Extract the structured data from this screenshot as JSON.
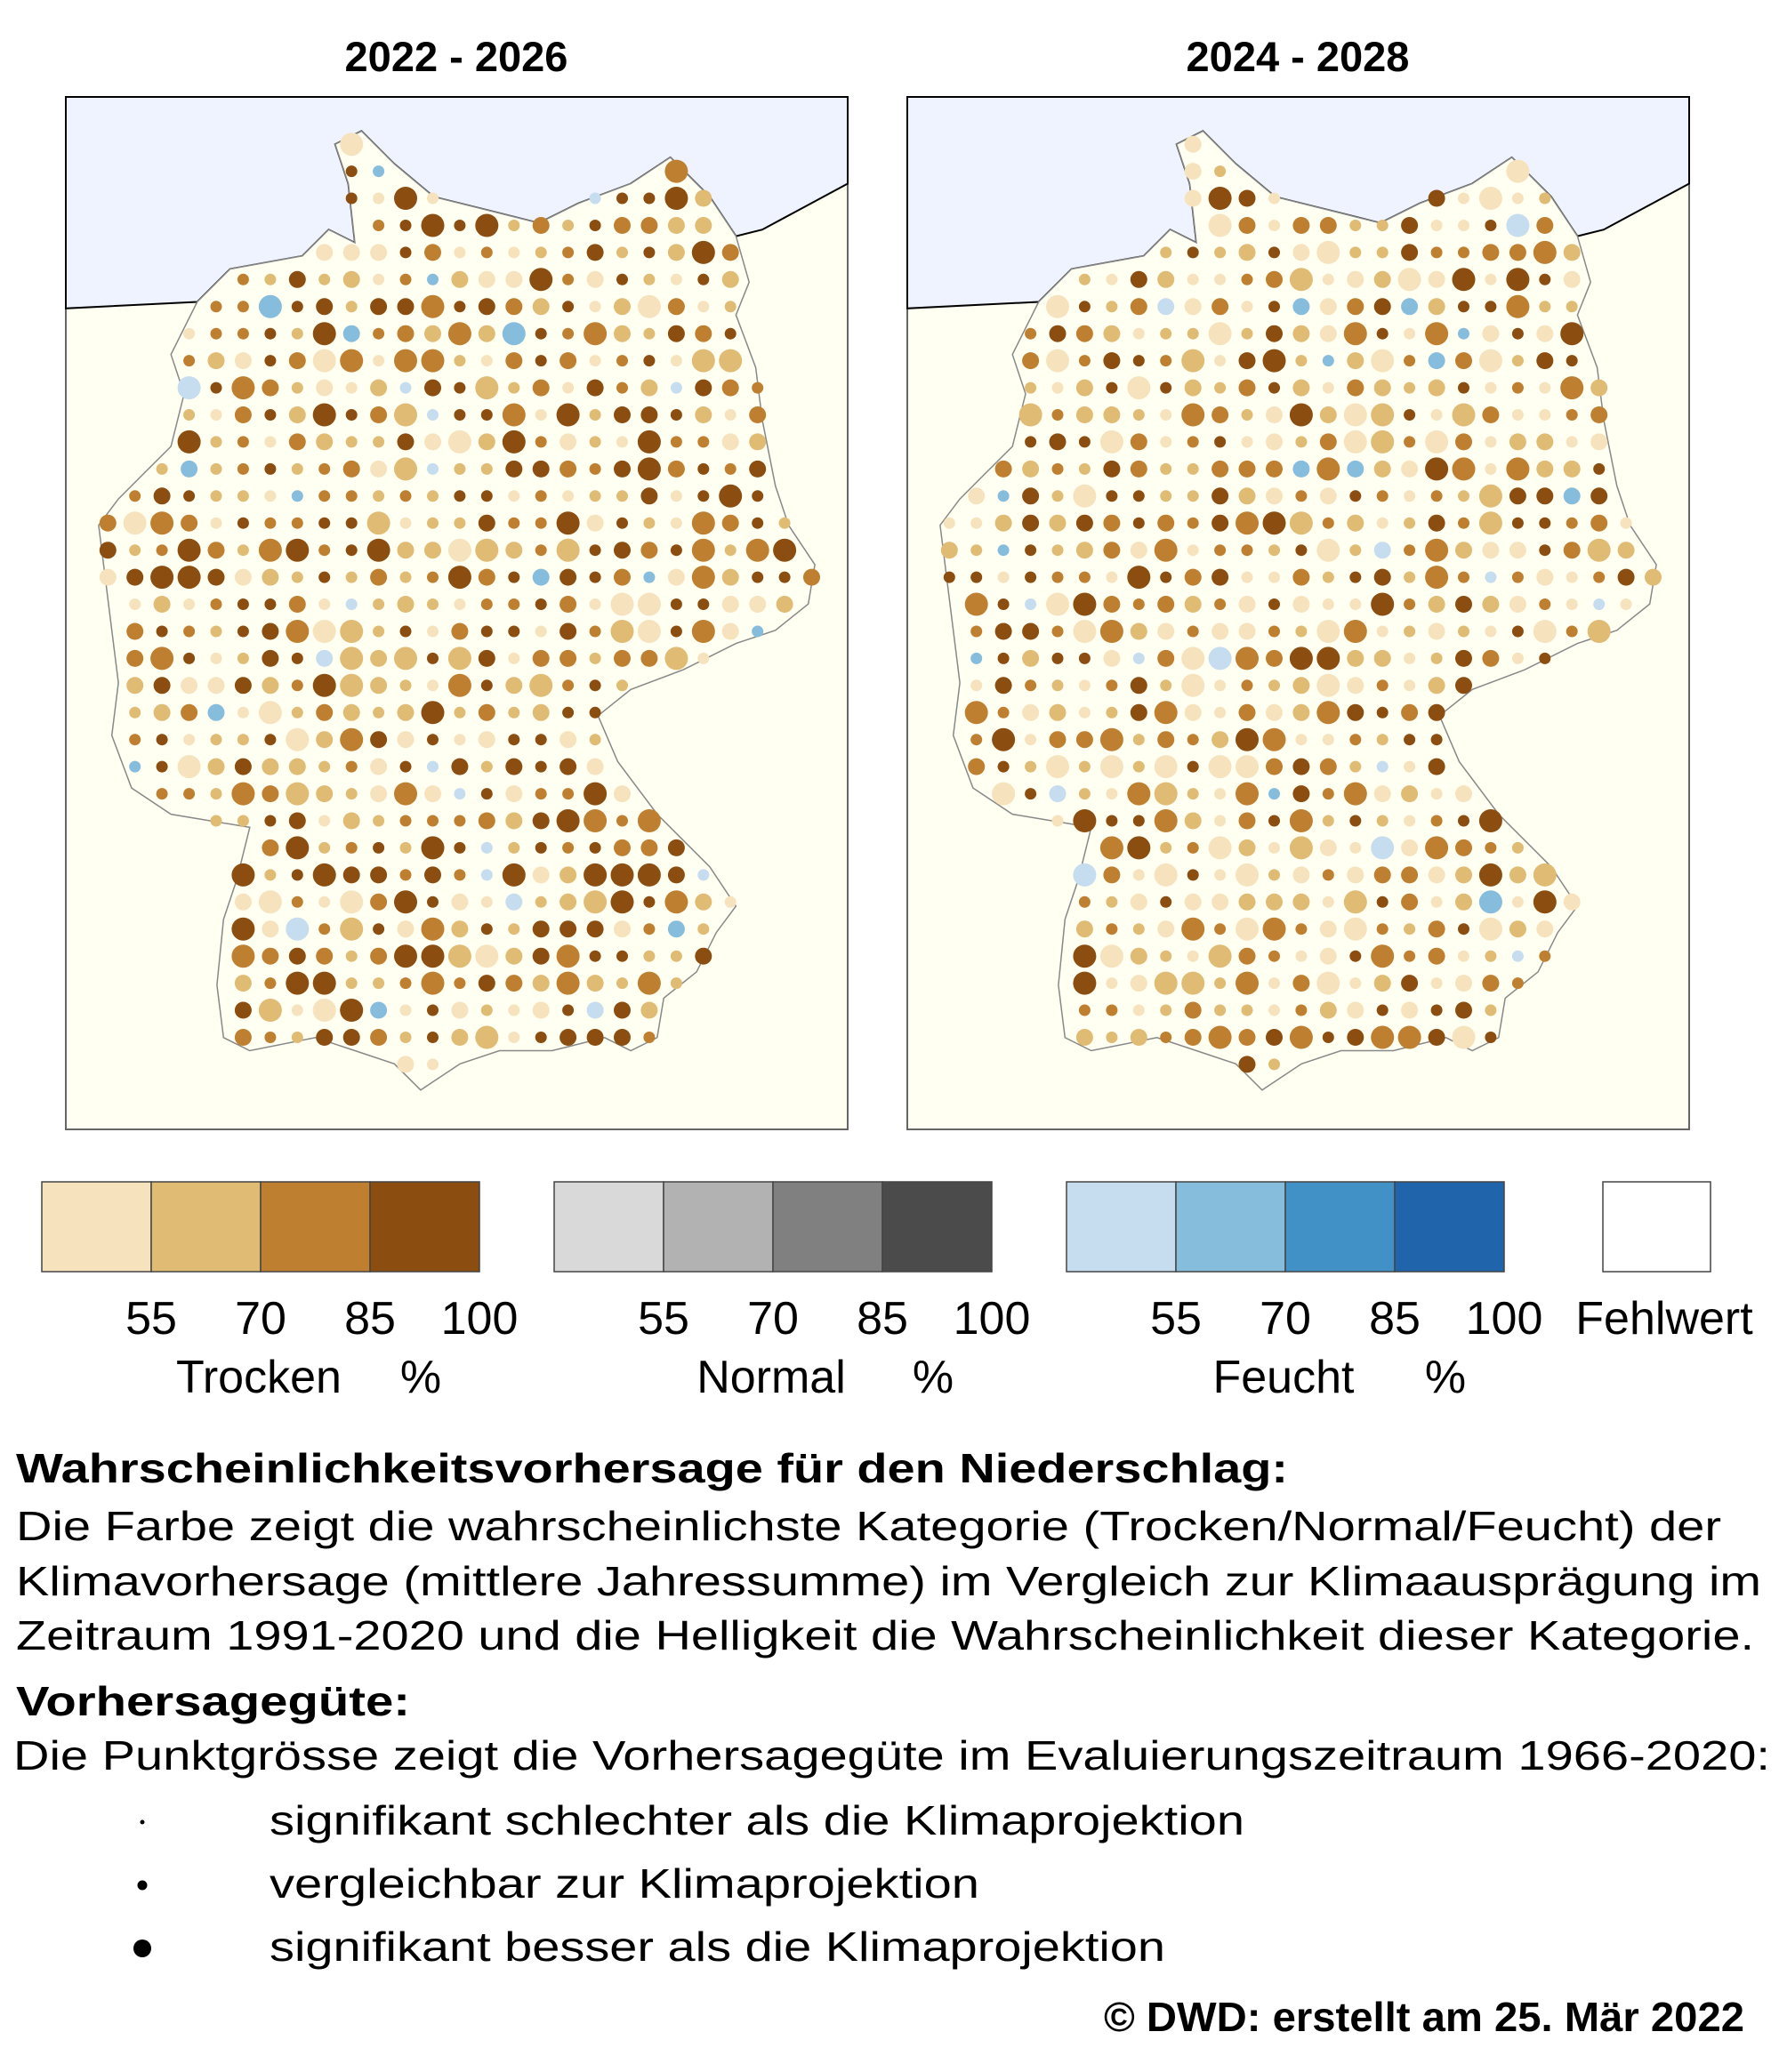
{
  "panels": [
    {
      "title": "2022 - 2026"
    },
    {
      "title": "2024 - 2028"
    }
  ],
  "legend": {
    "groups": [
      {
        "name": "Trocken",
        "unit": "%",
        "ticks": [
          "55",
          "70",
          "85",
          "100"
        ],
        "colors": [
          "#f6e3bd",
          "#e0bb74",
          "#bf7f30",
          "#8b4d10"
        ]
      },
      {
        "name": "Normal",
        "unit": "%",
        "ticks": [
          "55",
          "70",
          "85",
          "100"
        ],
        "colors": [
          "#d9d9d9",
          "#b2b2b2",
          "#808080",
          "#4b4b4b"
        ]
      },
      {
        "name": "Feucht",
        "unit": "%",
        "ticks": [
          "55",
          "70",
          "85",
          "100"
        ],
        "colors": [
          "#c6dcef",
          "#86bcdc",
          "#4191c6",
          "#2065ab"
        ]
      }
    ],
    "missing": {
      "label": "Fehlwert",
      "color": "#ffffff"
    }
  },
  "description": {
    "heading": "Wahrscheinlichkeitsvorhersage für den Niederschlag:",
    "lines": [
      "Die Farbe zeigt die wahrscheinlichste Kategorie (Trocken/Normal/Feucht) der",
      "Klimavorhersage (mittlere Jahressumme) im Vergleich zur Klimaausprägung im",
      "Zeitraum 1991-2020 und die Helligkeit die Wahrscheinlichkeit dieser Kategorie."
    ]
  },
  "skill": {
    "heading": "Vorhersagegüte:",
    "text": "Die Punktgrösse zeigt die Vorhersagegüte im Evaluierungszeitraum 1966-2020:",
    "items": [
      "signifikant schlechter als die Klimaprojektion",
      "vergleichbar zur Klimaprojektion",
      "signifikant besser als die Klimaprojektion"
    ]
  },
  "footer": "© DWD: erstellt am 25. Mär 2022"
}
